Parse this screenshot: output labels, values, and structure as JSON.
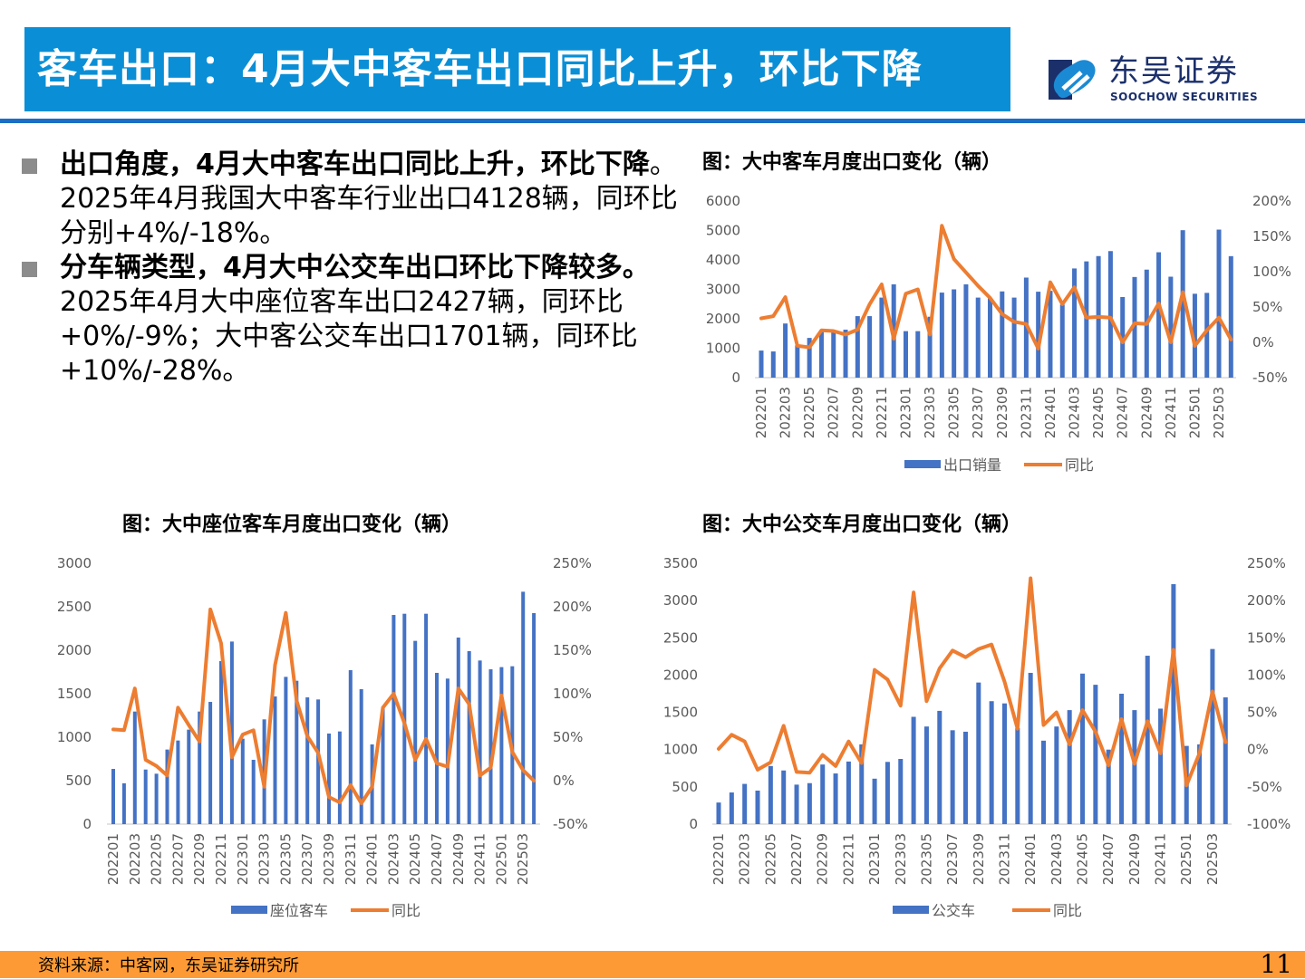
{
  "header": {
    "title": "客车出口：4月大中客车出口同比上升，环比下降"
  },
  "logo": {
    "cn": "东吴证券",
    "en": "SOOCHOW SECURITIES"
  },
  "bullets": [
    {
      "bold": "出口角度，4月大中客车出口同比上升，环比下降",
      "text": "。2025年4月我国大中客车行业出口4128辆，同环比分别+4%/-18%。"
    },
    {
      "bold": "分车辆类型，4月大中公交车出口环比下降较多。",
      "text": "2025年4月大中座位客车出口2427辆，同环比+0%/-9%；大中客公交车出口1701辆，同环比+10%/-28%。"
    }
  ],
  "footer": {
    "source": "资料来源：中客网，东吴证券研究所",
    "page": "11"
  },
  "colors": {
    "bar": "#4472c4",
    "line": "#ed7d31",
    "header": "#0a8fd6",
    "footer": "#fe9a35"
  },
  "chart_data": [
    {
      "type": "bar+line",
      "title": "图：大中客车月度出口变化（辆）",
      "categories": [
        "202201",
        "202202",
        "202203",
        "202204",
        "202205",
        "202206",
        "202207",
        "202208",
        "202209",
        "202210",
        "202211",
        "202212",
        "202301",
        "202302",
        "202303",
        "202304",
        "202305",
        "202306",
        "202307",
        "202308",
        "202309",
        "202310",
        "202311",
        "202312",
        "202401",
        "202402",
        "202403",
        "202404",
        "202405",
        "202406",
        "202407",
        "202408",
        "202409",
        "202410",
        "202411",
        "202412",
        "202501",
        "202502",
        "202503",
        "202504"
      ],
      "tick_labels": [
        "202201",
        "202203",
        "202205",
        "202207",
        "202209",
        "202211",
        "202301",
        "202303",
        "202305",
        "202307",
        "202309",
        "202311",
        "202401",
        "202403",
        "202405",
        "202407",
        "202409",
        "202411",
        "202501",
        "202503"
      ],
      "y_left": {
        "range": [
          0,
          6000
        ],
        "ticks": [
          "0",
          "1000",
          "2000",
          "3000",
          "4000",
          "5000",
          "6000"
        ]
      },
      "y_right": {
        "range": [
          -50,
          200
        ],
        "ticks": [
          "-50%",
          "0%",
          "50%",
          "100%",
          "150%",
          "200%"
        ]
      },
      "series": [
        {
          "name": "出口销量",
          "kind": "bar",
          "values": [
            920,
            890,
            1840,
            1100,
            1350,
            1610,
            1610,
            1630,
            2090,
            2090,
            2720,
            3170,
            1580,
            1580,
            2070,
            2890,
            3000,
            3170,
            2720,
            2690,
            2930,
            2720,
            3400,
            2920,
            2950,
            2480,
            3710,
            3950,
            4130,
            4300,
            2740,
            3420,
            3670,
            4260,
            3430,
            5010,
            2850,
            2880,
            5030,
            4128
          ]
        },
        {
          "name": "同比",
          "kind": "line",
          "values": [
            34,
            37,
            64,
            -5,
            -7,
            17,
            16,
            11,
            18,
            54,
            82,
            5,
            69,
            75,
            11,
            165,
            118,
            99,
            80,
            63,
            40,
            29,
            26,
            -9,
            85,
            54,
            78,
            35,
            36,
            35,
            0,
            27,
            26,
            55,
            0,
            71,
            -5,
            17,
            35,
            4
          ]
        }
      ],
      "legend": "bottom"
    },
    {
      "type": "bar+line",
      "title": "图：大中座位客车月度出口变化（辆）",
      "categories": [
        "202201",
        "202202",
        "202203",
        "202204",
        "202205",
        "202206",
        "202207",
        "202208",
        "202209",
        "202210",
        "202211",
        "202212",
        "202301",
        "202302",
        "202303",
        "202304",
        "202305",
        "202306",
        "202307",
        "202308",
        "202309",
        "202310",
        "202311",
        "202312",
        "202401",
        "202402",
        "202403",
        "202404",
        "202405",
        "202406",
        "202407",
        "202408",
        "202409",
        "202410",
        "202411",
        "202412",
        "202501",
        "202502",
        "202503",
        "202504"
      ],
      "tick_labels": [
        "202201",
        "202203",
        "202205",
        "202207",
        "202209",
        "202211",
        "202301",
        "202303",
        "202305",
        "202307",
        "202309",
        "202311",
        "202401",
        "202403",
        "202405",
        "202407",
        "202409",
        "202411",
        "202501",
        "202503"
      ],
      "y_left": {
        "range": [
          0,
          3000
        ],
        "ticks": [
          "0",
          "500",
          "1000",
          "1500",
          "2000",
          "2500",
          "3000"
        ]
      },
      "y_right": {
        "range": [
          -50,
          250
        ],
        "ticks": [
          "-50%",
          "0%",
          "50%",
          "100%",
          "150%",
          "200%",
          "250%"
        ]
      },
      "series": [
        {
          "name": "座位客车",
          "kind": "bar",
          "values": [
            635,
            470,
            1295,
            628,
            580,
            858,
            962,
            1087,
            1295,
            1406,
            1875,
            2100,
            983,
            740,
            1205,
            1469,
            1694,
            1649,
            1458,
            1434,
            1042,
            1066,
            1771,
            1552,
            917,
            1347,
            2406,
            2420,
            2108,
            2420,
            1740,
            1674,
            2146,
            1990,
            1882,
            1781,
            1806,
            1816,
            2673,
            2427
          ]
        },
        {
          "name": "同比",
          "kind": "line",
          "values": [
            59,
            58,
            106,
            24,
            17,
            6,
            84,
            64,
            45,
            197,
            158,
            27,
            53,
            58,
            -7,
            133,
            193,
            92,
            51,
            32,
            -19,
            -25,
            -5,
            -26,
            -7,
            84,
            100,
            66,
            24,
            48,
            20,
            16,
            106,
            88,
            6,
            15,
            98,
            33,
            12,
            0
          ]
        }
      ],
      "legend": "bottom"
    },
    {
      "type": "bar+line",
      "title": "图：大中公交车月度出口变化（辆）",
      "categories": [
        "202201",
        "202202",
        "202203",
        "202204",
        "202205",
        "202206",
        "202207",
        "202208",
        "202209",
        "202210",
        "202211",
        "202212",
        "202301",
        "202302",
        "202303",
        "202304",
        "202305",
        "202306",
        "202307",
        "202308",
        "202309",
        "202310",
        "202311",
        "202312",
        "202401",
        "202402",
        "202403",
        "202404",
        "202405",
        "202406",
        "202407",
        "202408",
        "202409",
        "202410",
        "202411",
        "202412",
        "202501",
        "202502",
        "202503",
        "202504"
      ],
      "tick_labels": [
        "202201",
        "202203",
        "202205",
        "202207",
        "202209",
        "202211",
        "202301",
        "202303",
        "202305",
        "202307",
        "202309",
        "202311",
        "202401",
        "202403",
        "202405",
        "202407",
        "202409",
        "202411",
        "202501",
        "202503"
      ],
      "y_left": {
        "range": [
          0,
          3500
        ],
        "ticks": [
          "0",
          "500",
          "1000",
          "1500",
          "2000",
          "2500",
          "3000",
          "3500"
        ]
      },
      "y_right": {
        "range": [
          -100,
          250
        ],
        "ticks": [
          "-100%",
          "-50%",
          "0%",
          "50%",
          "100%",
          "150%",
          "200%",
          "250%"
        ]
      },
      "series": [
        {
          "name": "公交车",
          "kind": "bar",
          "values": [
            290,
            425,
            540,
            450,
            780,
            720,
            530,
            550,
            800,
            680,
            840,
            1070,
            610,
            835,
            875,
            1440,
            1310,
            1520,
            1260,
            1240,
            1900,
            1650,
            1620,
            1290,
            2030,
            1120,
            1310,
            1530,
            2020,
            1870,
            1000,
            1750,
            1530,
            2260,
            1550,
            3220,
            1050,
            1070,
            2350,
            1701
          ]
        },
        {
          "name": "同比",
          "kind": "line",
          "values": [
            1,
            20,
            11,
            -27,
            -17,
            32,
            -30,
            -31,
            -7,
            -22,
            11,
            -18,
            107,
            94,
            59,
            211,
            65,
            109,
            133,
            124,
            135,
            141,
            91,
            28,
            230,
            33,
            50,
            7,
            53,
            24,
            -21,
            41,
            -19,
            38,
            -5,
            134,
            -48,
            -5,
            78,
            10
          ]
        }
      ],
      "legend": "bottom"
    }
  ]
}
